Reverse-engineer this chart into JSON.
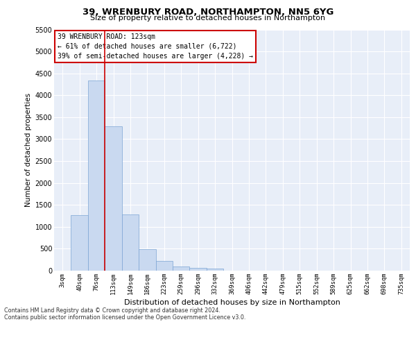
{
  "title": "39, WRENBURY ROAD, NORTHAMPTON, NN5 6YG",
  "subtitle": "Size of property relative to detached houses in Northampton",
  "xlabel": "Distribution of detached houses by size in Northampton",
  "ylabel": "Number of detached properties",
  "categories": [
    "3sqm",
    "40sqm",
    "76sqm",
    "113sqm",
    "149sqm",
    "186sqm",
    "223sqm",
    "259sqm",
    "296sqm",
    "332sqm",
    "369sqm",
    "406sqm",
    "442sqm",
    "479sqm",
    "515sqm",
    "552sqm",
    "589sqm",
    "625sqm",
    "662sqm",
    "698sqm",
    "735sqm"
  ],
  "bar_values": [
    0,
    1270,
    4330,
    3300,
    1280,
    490,
    215,
    90,
    70,
    55,
    0,
    0,
    0,
    0,
    0,
    0,
    0,
    0,
    0,
    0,
    0
  ],
  "bar_color": "#c9d9f0",
  "bar_edge_color": "#7ba4d4",
  "annotation_title": "39 WRENBURY ROAD: 123sqm",
  "annotation_line1": "← 61% of detached houses are smaller (6,722)",
  "annotation_line2": "39% of semi-detached houses are larger (4,228) →",
  "vline_x_index": 2.5,
  "vline_color": "#cc0000",
  "annotation_box_color": "#ffffff",
  "annotation_box_edge_color": "#cc0000",
  "ylim": [
    0,
    5500
  ],
  "yticks": [
    0,
    500,
    1000,
    1500,
    2000,
    2500,
    3000,
    3500,
    4000,
    4500,
    5000,
    5500
  ],
  "background_color": "#e8eef8",
  "grid_color": "#ffffff",
  "footer_line1": "Contains HM Land Registry data © Crown copyright and database right 2024.",
  "footer_line2": "Contains public sector information licensed under the Open Government Licence v3.0."
}
